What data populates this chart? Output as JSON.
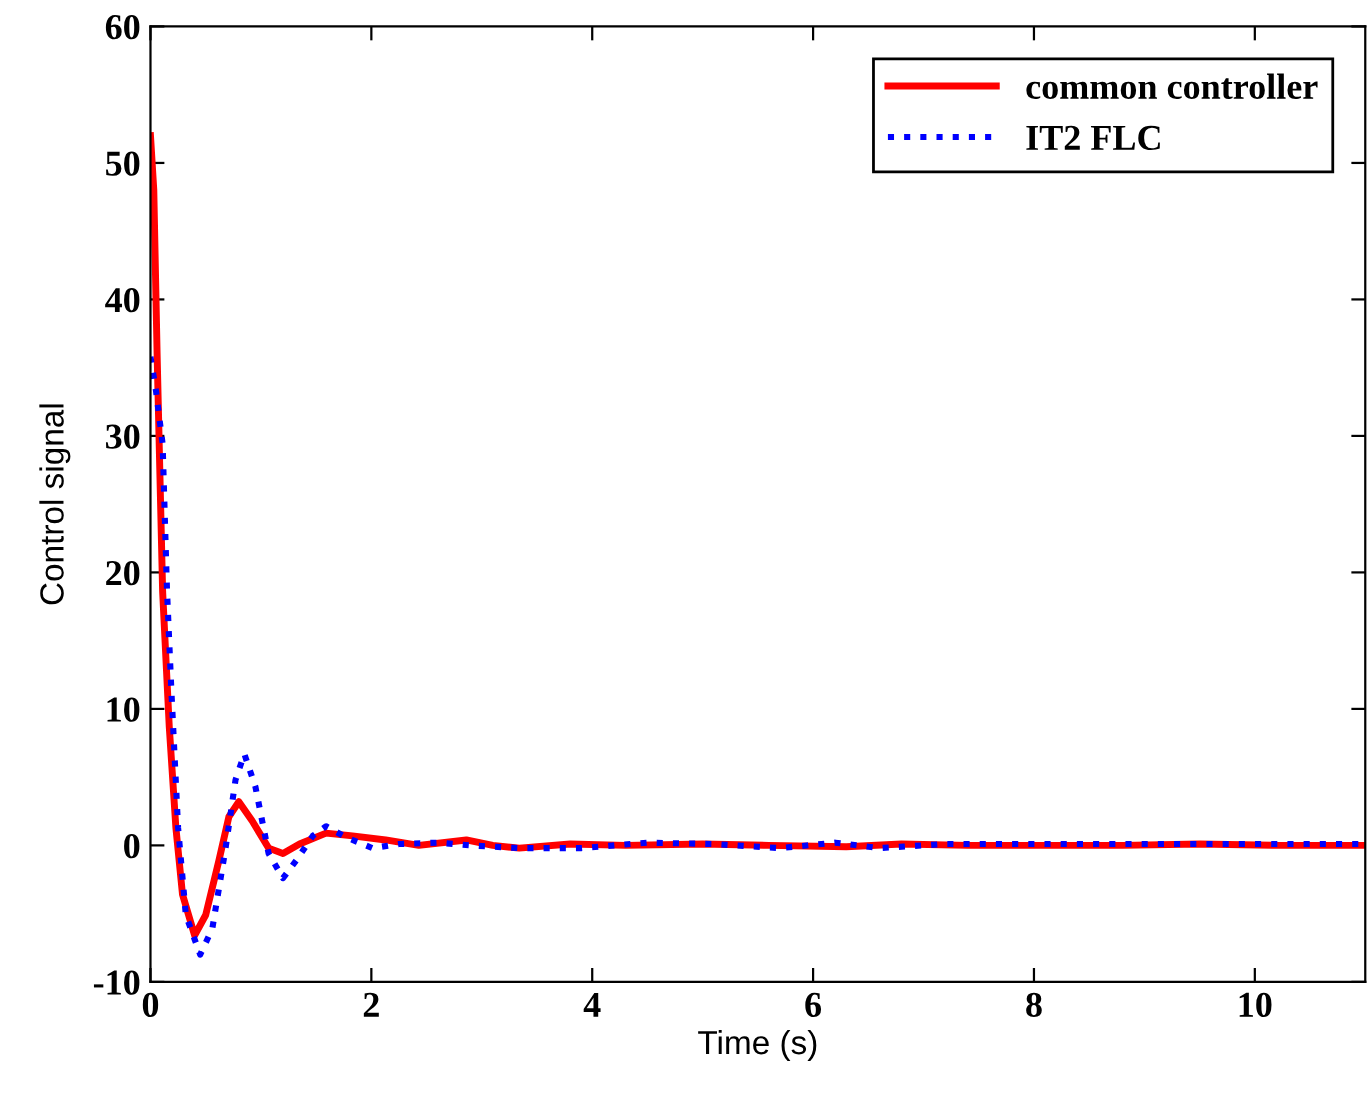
{
  "chart_data": {
    "type": "line",
    "xlabel": "Time (s)",
    "ylabel": "Control signal",
    "xlim": [
      0,
      11
    ],
    "ylim": [
      -10,
      60
    ],
    "xticks": [
      0,
      2,
      4,
      6,
      8,
      10
    ],
    "yticks": [
      -10,
      0,
      10,
      20,
      30,
      40,
      50,
      60
    ],
    "grid": false,
    "legend": "top right",
    "series": [
      {
        "name": "common controller",
        "color": "#ff0000",
        "line_style": "solid",
        "x": [
          0,
          0.03,
          0.06,
          0.11,
          0.17,
          0.23,
          0.29,
          0.4,
          0.5,
          0.62,
          0.71,
          0.8,
          0.92,
          1.07,
          1.2,
          1.35,
          1.59,
          1.83,
          2.13,
          2.43,
          2.86,
          3.1,
          3.34,
          3.8,
          4.3,
          5.0,
          5.6,
          6.3,
          6.8,
          7.4,
          8.0,
          8.8,
          9.5,
          10.2,
          11
        ],
        "values": [
          52,
          48,
          36,
          18.6,
          8.7,
          1.3,
          -3.6,
          -6.6,
          -5.1,
          -1.1,
          2.1,
          3.2,
          1.8,
          -0.2,
          -0.6,
          0.1,
          0.9,
          0.7,
          0.4,
          0,
          0.4,
          0,
          -0.2,
          0.1,
          0,
          0.1,
          0,
          -0.1,
          0.1,
          0,
          0,
          0,
          0.1,
          0,
          0
        ]
      },
      {
        "name": "IT2 FLC",
        "color": "#0000ff",
        "line_style": "dotted",
        "x": [
          0,
          0.05,
          0.11,
          0.15,
          0.19,
          0.25,
          0.32,
          0.45,
          0.56,
          0.68,
          0.77,
          0.85,
          0.95,
          1.07,
          1.2,
          1.32,
          1.47,
          1.59,
          1.77,
          2.01,
          2.25,
          2.6,
          2.9,
          3.34,
          3.9,
          4.5,
          5.1,
          5.7,
          6.2,
          6.6,
          7.2,
          8.0,
          8.8,
          9.5,
          10.2,
          11
        ],
        "values": [
          35.8,
          33.3,
          29.4,
          18.6,
          11.2,
          1.3,
          -5.1,
          -8.0,
          -6.1,
          -0.2,
          4.8,
          6.7,
          4.3,
          -0.6,
          -2.4,
          -1.1,
          0.7,
          1.4,
          0.6,
          -0.2,
          0.1,
          0.2,
          0,
          -0.2,
          -0.2,
          0.2,
          0.1,
          -0.2,
          0.2,
          -0.2,
          0.1,
          0.1,
          0.1,
          0.1,
          0.1,
          0.1
        ]
      }
    ]
  }
}
